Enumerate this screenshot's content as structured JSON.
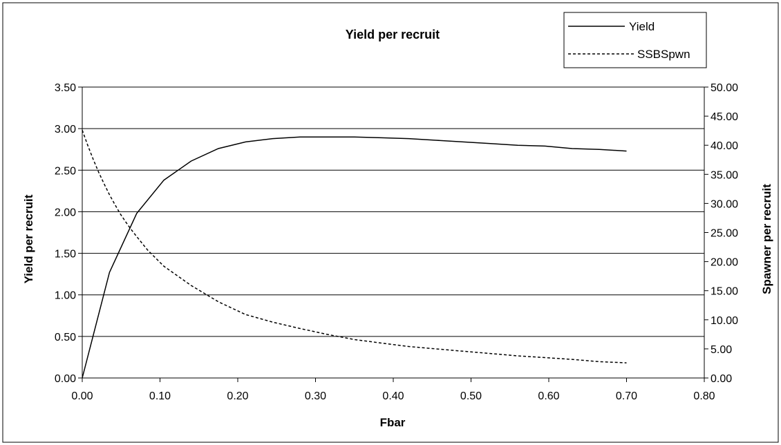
{
  "chart_data": {
    "type": "line",
    "title": "Yield per recruit",
    "xlabel": "Fbar",
    "ylabel_left": "Yield per recruit",
    "ylabel_right": "Spawner per recruit",
    "xlim": [
      0,
      0.8
    ],
    "ylim_left": [
      0,
      3.5
    ],
    "ylim_right": [
      0,
      50
    ],
    "x_ticks": [
      "0.00",
      "0.10",
      "0.20",
      "0.30",
      "0.40",
      "0.50",
      "0.60",
      "0.70",
      "0.80"
    ],
    "y_ticks_left": [
      "0.00",
      "0.50",
      "1.00",
      "1.50",
      "2.00",
      "2.50",
      "3.00",
      "3.50"
    ],
    "y_ticks_right": [
      "0.00",
      "5.00",
      "10.00",
      "15.00",
      "20.00",
      "25.00",
      "30.00",
      "35.00",
      "40.00",
      "45.00",
      "50.00"
    ],
    "grid": "horizontal",
    "legend": "top-right",
    "series": [
      {
        "name": "Yield",
        "axis": "left",
        "style": "solid",
        "color": "#000000",
        "x": [
          0,
          0.035,
          0.07,
          0.105,
          0.14,
          0.175,
          0.21,
          0.245,
          0.28,
          0.315,
          0.35,
          0.385,
          0.42,
          0.455,
          0.49,
          0.525,
          0.56,
          0.595,
          0.63,
          0.665,
          0.7
        ],
        "y": [
          0,
          1.27,
          1.98,
          2.38,
          2.61,
          2.76,
          2.84,
          2.88,
          2.9,
          2.9,
          2.9,
          2.89,
          2.88,
          2.86,
          2.84,
          2.82,
          2.8,
          2.79,
          2.76,
          2.75,
          2.73
        ]
      },
      {
        "name": "SSBSpwn",
        "axis": "right",
        "style": "dashed",
        "color": "#000000",
        "x": [
          0,
          0.007,
          0.014,
          0.021,
          0.028,
          0.035,
          0.042,
          0.049,
          0.056,
          0.063,
          0.07,
          0.084,
          0.105,
          0.14,
          0.175,
          0.21,
          0.245,
          0.28,
          0.315,
          0.35,
          0.385,
          0.42,
          0.455,
          0.49,
          0.525,
          0.56,
          0.595,
          0.63,
          0.665,
          0.7
        ],
        "y": [
          42.6,
          40.0,
          37.6,
          35.4,
          33.4,
          31.5,
          29.8,
          28.2,
          26.8,
          25.5,
          24.3,
          22.0,
          19.2,
          15.9,
          13.1,
          10.9,
          9.6,
          8.5,
          7.5,
          6.6,
          6.0,
          5.4,
          5.0,
          4.6,
          4.2,
          3.8,
          3.5,
          3.2,
          2.8,
          2.6
        ]
      }
    ]
  }
}
